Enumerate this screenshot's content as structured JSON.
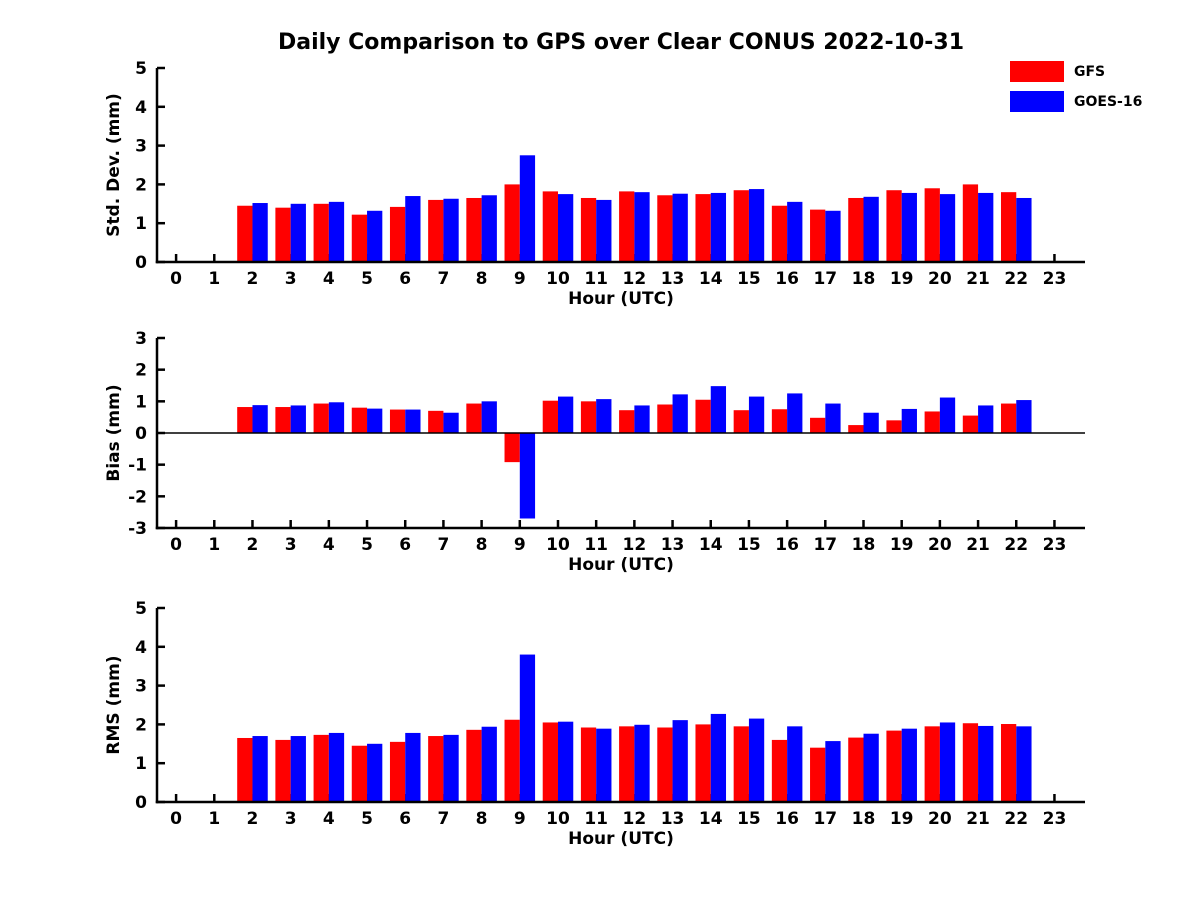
{
  "title": "Daily Comparison to GPS over Clear CONUS 2022-10-31",
  "legend": {
    "position": "top-right",
    "items": [
      {
        "label": "GFS",
        "color": "#ff0000"
      },
      {
        "label": "GOES-16",
        "color": "#0000ff"
      }
    ]
  },
  "colors": {
    "background": "#ffffff",
    "axis": "#000000",
    "gfs": "#ff0000",
    "goes16": "#0000ff"
  },
  "chart_data": [
    {
      "type": "bar",
      "title": "",
      "xlabel": "Hour (UTC)",
      "ylabel": "Std. Dev. (mm)",
      "categories": [
        0,
        1,
        2,
        3,
        4,
        5,
        6,
        7,
        8,
        9,
        10,
        11,
        12,
        13,
        14,
        15,
        16,
        17,
        18,
        19,
        20,
        21,
        22,
        23
      ],
      "xlim": [
        -0.5,
        23.8
      ],
      "ylim": [
        0,
        5
      ],
      "yticks": [
        0,
        1,
        2,
        3,
        4,
        5
      ],
      "grid": false,
      "zero_line": false,
      "series": [
        {
          "name": "GFS",
          "color": "#ff0000",
          "values": [
            null,
            null,
            1.45,
            1.4,
            1.5,
            1.22,
            1.42,
            1.6,
            1.65,
            2.0,
            1.82,
            1.65,
            1.82,
            1.72,
            1.75,
            1.85,
            1.45,
            1.35,
            1.65,
            1.85,
            1.9,
            2.0,
            1.8,
            null
          ]
        },
        {
          "name": "GOES-16",
          "color": "#0000ff",
          "values": [
            null,
            null,
            1.52,
            1.5,
            1.55,
            1.32,
            1.7,
            1.63,
            1.72,
            2.75,
            1.75,
            1.6,
            1.8,
            1.76,
            1.78,
            1.88,
            1.55,
            1.32,
            1.68,
            1.78,
            1.75,
            1.78,
            1.65,
            null
          ]
        }
      ]
    },
    {
      "type": "bar",
      "title": "",
      "xlabel": "Hour (UTC)",
      "ylabel": "Bias (mm)",
      "categories": [
        0,
        1,
        2,
        3,
        4,
        5,
        6,
        7,
        8,
        9,
        10,
        11,
        12,
        13,
        14,
        15,
        16,
        17,
        18,
        19,
        20,
        21,
        22,
        23
      ],
      "xlim": [
        -0.5,
        23.8
      ],
      "ylim": [
        -3,
        3
      ],
      "yticks": [
        -3,
        -2,
        -1,
        0,
        1,
        2,
        3
      ],
      "grid": false,
      "zero_line": true,
      "series": [
        {
          "name": "GFS",
          "color": "#ff0000",
          "values": [
            null,
            null,
            0.82,
            0.82,
            0.93,
            0.8,
            0.74,
            0.7,
            0.93,
            -0.92,
            1.02,
            1.0,
            0.72,
            0.9,
            1.05,
            0.72,
            0.75,
            0.48,
            0.25,
            0.4,
            0.68,
            0.55,
            0.93,
            null
          ]
        },
        {
          "name": "GOES-16",
          "color": "#0000ff",
          "values": [
            null,
            null,
            0.88,
            0.87,
            0.97,
            0.77,
            0.74,
            0.64,
            1.0,
            -2.7,
            1.15,
            1.07,
            0.87,
            1.22,
            1.48,
            1.15,
            1.25,
            0.93,
            0.64,
            0.76,
            1.12,
            0.87,
            1.04,
            null
          ]
        }
      ]
    },
    {
      "type": "bar",
      "title": "",
      "xlabel": "Hour (UTC)",
      "ylabel": "RMS (mm)",
      "categories": [
        0,
        1,
        2,
        3,
        4,
        5,
        6,
        7,
        8,
        9,
        10,
        11,
        12,
        13,
        14,
        15,
        16,
        17,
        18,
        19,
        20,
        21,
        22,
        23
      ],
      "xlim": [
        -0.5,
        23.8
      ],
      "ylim": [
        0,
        5
      ],
      "yticks": [
        0,
        1,
        2,
        3,
        4,
        5
      ],
      "grid": false,
      "zero_line": false,
      "series": [
        {
          "name": "GFS",
          "color": "#ff0000",
          "values": [
            null,
            null,
            1.65,
            1.6,
            1.73,
            1.45,
            1.55,
            1.7,
            1.86,
            2.12,
            2.05,
            1.92,
            1.95,
            1.92,
            2.0,
            1.95,
            1.6,
            1.4,
            1.66,
            1.84,
            1.95,
            2.03,
            2.01,
            null
          ]
        },
        {
          "name": "GOES-16",
          "color": "#0000ff",
          "values": [
            null,
            null,
            1.7,
            1.7,
            1.78,
            1.5,
            1.78,
            1.73,
            1.94,
            3.8,
            2.07,
            1.89,
            1.99,
            2.11,
            2.27,
            2.15,
            1.95,
            1.57,
            1.76,
            1.89,
            2.05,
            1.96,
            1.95,
            null
          ]
        }
      ]
    }
  ]
}
